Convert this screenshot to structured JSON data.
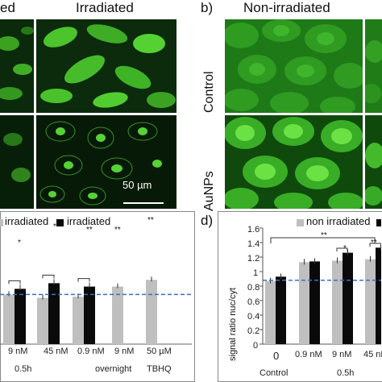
{
  "panel_a": {
    "title_left_partial": "ed",
    "title_right": "Irradiated",
    "scale_bar_label": "50 µm"
  },
  "panel_b": {
    "letter": "b)",
    "title": "Non-irradiated",
    "row_labels": [
      "Control",
      "AuNPs"
    ]
  },
  "panel_c": {
    "legend": [
      "irradiated",
      "irradiated"
    ],
    "legend_note": "left legend text partially cropped: '…irradiated' (grey) and 'irradiated' (black)",
    "x_tick_labels": [
      "9 nM",
      "45 nM",
      "0.9 nM",
      "9 nM",
      "50 µM"
    ],
    "group_labels": [
      "0.5h",
      "overnight",
      "TBHQ"
    ],
    "significance": [
      "*",
      "*",
      "**",
      "**",
      "**"
    ]
  },
  "panel_d": {
    "letter": "d)",
    "legend": [
      "non irradiated"
    ],
    "ylabel": "signal ratio nuc/cyt",
    "y_ticks": [
      "0",
      "0.2",
      "0.4",
      "0.6",
      "0.8",
      "1",
      "1.2",
      "1.4",
      "1.6"
    ],
    "x_tick_labels": [
      "0",
      "0.9 nM",
      "9 nM",
      "45 nM"
    ],
    "group_labels": [
      "Control",
      "0.5h"
    ],
    "significance": [
      "**",
      "*",
      "**"
    ]
  },
  "colors": {
    "grey_bar": "#bfbfbf",
    "black_bar": "#0a0a0a",
    "reference_line": "#3b6fc2",
    "fluorescence": "#4fd12a",
    "background_dark": "#061d08"
  },
  "chart_data": [
    {
      "type": "bar",
      "panel": "c",
      "categories": [
        "9 nM",
        "45 nM",
        "0.9 nM",
        "9 nM",
        "50 µM"
      ],
      "series": [
        {
          "name": "…irradiated",
          "values": [
            0.88,
            0.82,
            0.84,
            1.02,
            1.14
          ]
        },
        {
          "name": "irradiated",
          "values": [
            0.98,
            1.08,
            1.02,
            null,
            null
          ]
        }
      ],
      "reference_line": 0.88
    },
    {
      "type": "bar",
      "panel": "d",
      "categories": [
        "0",
        "0.9 nM",
        "9 nM",
        "45 nM"
      ],
      "series": [
        {
          "name": "non irradiated",
          "values": [
            0.87,
            1.13,
            1.15,
            1.17
          ]
        },
        {
          "name": "",
          "values": [
            0.93,
            1.14,
            1.26,
            1.33
          ]
        }
      ],
      "ylabel": "signal ratio nuc/cyt",
      "ylim": [
        0,
        1.6
      ],
      "reference_line": 0.88
    }
  ]
}
